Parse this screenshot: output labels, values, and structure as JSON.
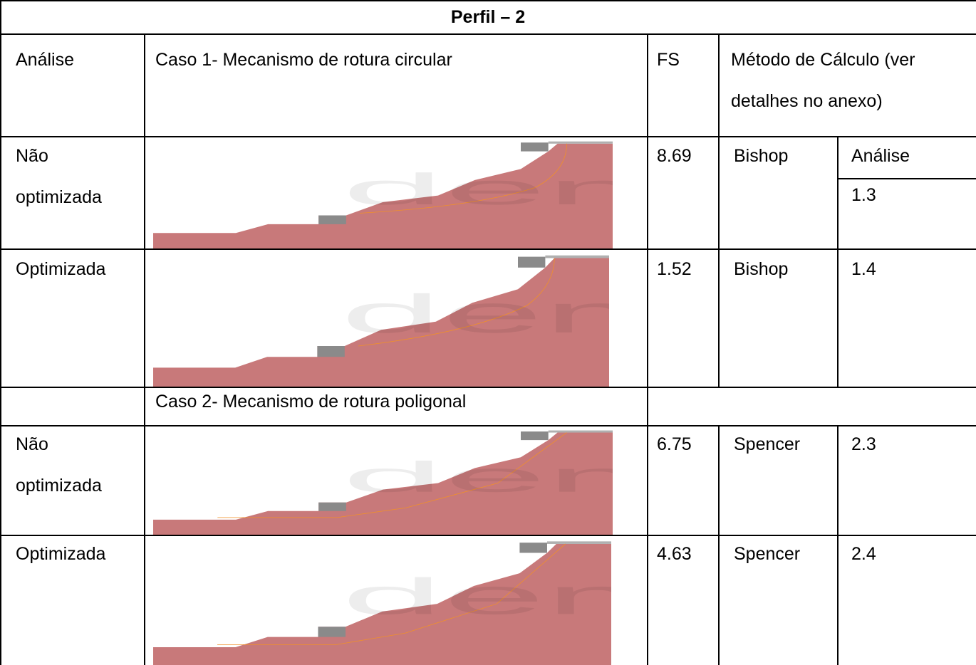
{
  "table": {
    "title": "Perfil – 2",
    "header": [
      "Análise",
      "Caso 1- Mecanismo de rotura circular",
      "FS",
      "Método de Cálculo (ver detalhes no anexo)"
    ],
    "rows": [
      {
        "analise": "Não optimizada",
        "fs": "8.69",
        "metodo": "Bishop",
        "anexo_label": "Análise",
        "anexo": "1.3"
      },
      {
        "analise": "Optimizada",
        "fs": "1.52",
        "metodo": "Bishop",
        "anexo": "1.4"
      },
      {
        "analise": "Não optimizada",
        "fs": "6.75",
        "metodo": "Spencer",
        "anexo": "2.3"
      },
      {
        "analise": "Optimizada",
        "fs": "4.63",
        "metodo": "Spencer",
        "anexo": "2.4"
      }
    ],
    "caso2": "Caso 2- Mecanismo de rotura poligonal"
  }
}
